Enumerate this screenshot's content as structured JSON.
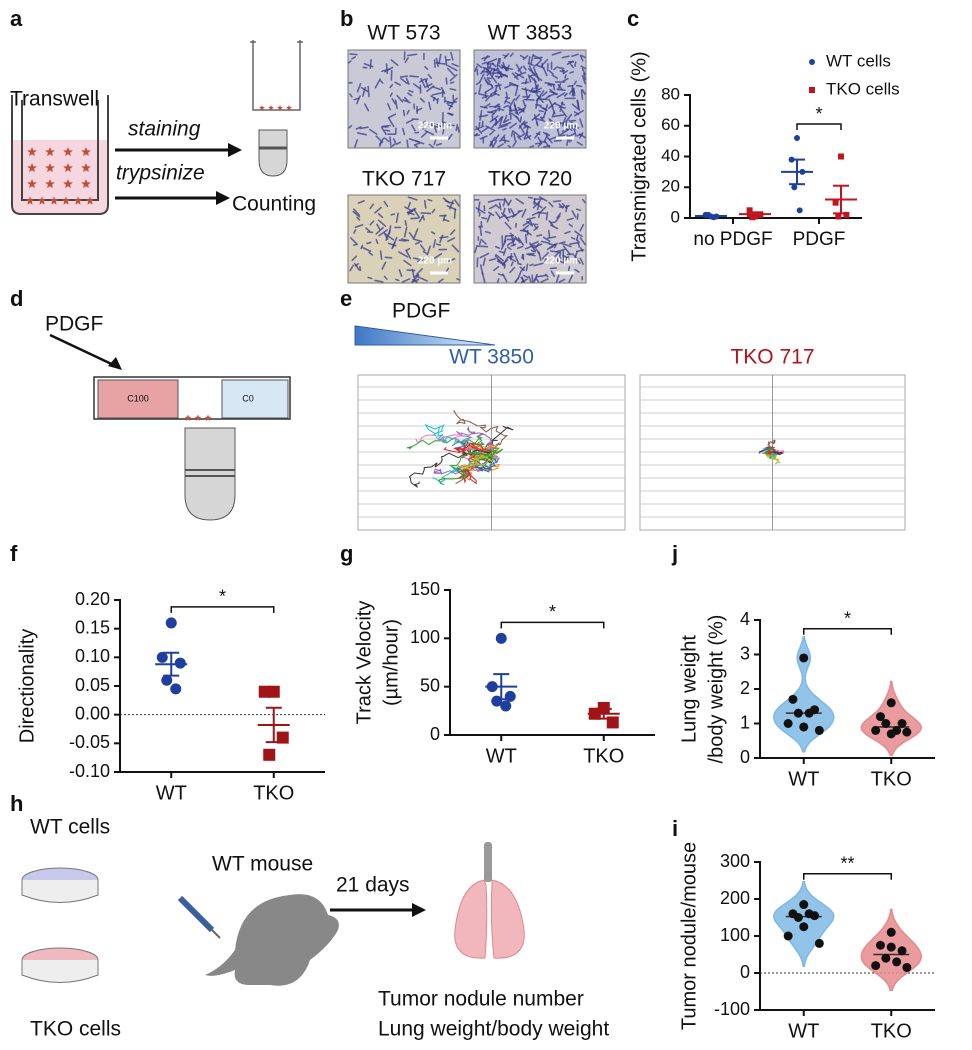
{
  "panel_labels": [
    "a",
    "b",
    "c",
    "d",
    "e",
    "f",
    "g",
    "j",
    "h",
    "i"
  ],
  "panel_a": {
    "container": "Transwell",
    "step_1": "staining",
    "step_2": "trypsinize",
    "result": "Counting"
  },
  "panel_b": {
    "images": [
      {
        "label": "WT 573",
        "scale_bar": "220 µm"
      },
      {
        "label": "WT 3853",
        "scale_bar": "220 µm"
      },
      {
        "label": "TKO 717",
        "scale_bar": "220 µm"
      },
      {
        "label": "TKO 720",
        "scale_bar": "220 µm"
      }
    ]
  },
  "panel_d": {
    "stimulus": "PDGF",
    "chamber_high": "C100",
    "chamber_low": "C0"
  },
  "panel_e": {
    "gradient": "PDGF",
    "plots": [
      {
        "title": "WT 3850",
        "color": "#2f5fa8"
      },
      {
        "title": "TKO 717",
        "color": "#b0141c"
      }
    ]
  },
  "panel_h": {
    "group_1": "WT cells",
    "group_2": "TKO cells",
    "host": "WT mouse",
    "duration": "21 days",
    "readouts": [
      "Tumor nodule number",
      "Lung weight/body weight"
    ]
  },
  "chart_data": [
    {
      "type": "dot",
      "y_label": "Transmigrated cells (%)",
      "categories": [
        "no PDGF",
        "PDGF"
      ],
      "ylim": [
        0,
        80
      ],
      "yticks": [
        0,
        20,
        40,
        60,
        80
      ],
      "annotation": "*",
      "legend": "right",
      "series": [
        {
          "name": "WT cells",
          "color": "#1f3f9e",
          "marker": "circle",
          "values": [
            [
              1,
              2,
              1,
              2,
              0.5
            ],
            [
              52,
              38,
              30,
              20,
              5
            ]
          ],
          "means": [
            1.3,
            30
          ],
          "errors": [
            0.3,
            8
          ]
        },
        {
          "name": "TKO cells",
          "color": "#c0141e",
          "marker": "square",
          "values": [
            [
              1,
              5,
              2,
              0.5
            ],
            [
              40,
              10,
              2,
              1
            ]
          ],
          "means": [
            2.5,
            12
          ],
          "errors": [
            1.2,
            9
          ]
        }
      ]
    },
    {
      "type": "dot",
      "y_label": "Directionality",
      "categories": [
        "WT",
        "TKO"
      ],
      "colors": [
        "#1f3f9e",
        "#a01418"
      ],
      "markers": [
        "circle",
        "square"
      ],
      "ylim": [
        -0.1,
        0.2
      ],
      "yticks": [
        {
          "value": -0.1,
          "label": "-0.10"
        },
        {
          "value": -0.05,
          "label": "-0.05"
        },
        {
          "value": 0,
          "label": "0.00"
        },
        {
          "value": 0.05,
          "label": "0.05"
        },
        {
          "value": 0.1,
          "label": "0.10"
        },
        {
          "value": 0.15,
          "label": "0.15"
        },
        {
          "value": 0.2,
          "label": "0.20"
        }
      ],
      "ref_line": 0,
      "annotation": "*",
      "values": [
        [
          0.16,
          0.1,
          0.09,
          0.06,
          0.045
        ],
        [
          0.04,
          0.04,
          -0.04,
          -0.07
        ]
      ],
      "means": [
        0.088,
        -0.018
      ],
      "errors": [
        0.02,
        0.03
      ]
    },
    {
      "type": "dot",
      "y_label": [
        "Track Velocity",
        "(µm/hour)"
      ],
      "categories": [
        "WT",
        "TKO"
      ],
      "colors": [
        "#1f3f9e",
        "#a01418"
      ],
      "markers": [
        "circle",
        "square"
      ],
      "ylim": [
        0,
        150
      ],
      "yticks": [
        0,
        50,
        100,
        150
      ],
      "annotation": "*",
      "values": [
        [
          100,
          50,
          40,
          35,
          30
        ],
        [
          28,
          22,
          13
        ]
      ],
      "means": [
        50,
        22
      ],
      "errors": [
        13,
        5
      ]
    },
    {
      "type": "violin",
      "y_label": [
        "Lung weight",
        "/body weight  (%)"
      ],
      "categories": [
        "WT",
        "TKO"
      ],
      "colors": [
        "#7fb8e4",
        "#e58a8c"
      ],
      "ylim": [
        0,
        4
      ],
      "yticks": [
        0,
        1,
        2,
        3,
        4
      ],
      "annotation": "*",
      "values": [
        [
          2.9,
          1.7,
          1.4,
          1.3,
          1.3,
          1.0,
          0.8,
          0.9
        ],
        [
          1.6,
          1.2,
          1.0,
          1.0,
          0.8,
          0.8,
          0.75,
          0.7
        ]
      ]
    },
    {
      "type": "violin",
      "y_label": "Tumor nodule/mouse",
      "categories": [
        "WT",
        "TKO"
      ],
      "colors": [
        "#7fb8e4",
        "#e58a8c"
      ],
      "ylim": [
        -100,
        300
      ],
      "yticks": [
        -100,
        0,
        100,
        200,
        300
      ],
      "ref_line": 0,
      "annotation": "**",
      "values": [
        [
          185,
          160,
          155,
          150,
          160,
          100,
          80,
          125
        ],
        [
          110,
          75,
          60,
          40,
          30,
          20,
          15,
          70
        ]
      ]
    }
  ]
}
